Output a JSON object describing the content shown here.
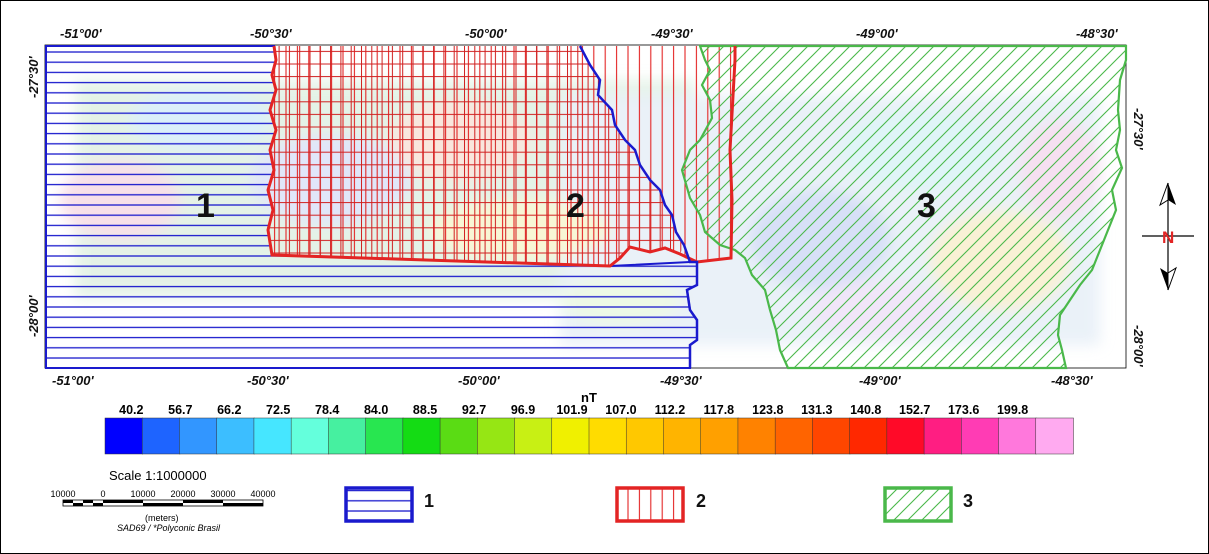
{
  "top_coords": [
    "-51°00'",
    "-50°30'",
    "-50°00'",
    "-49°30'",
    "-49°00'",
    "-48°30'"
  ],
  "bottom_coords": [
    "-51°00'",
    "-50°30'",
    "-50°00'",
    "-49°30'",
    "-49°00'",
    "-48°30'"
  ],
  "left_coords": [
    "-27°30'",
    "-28°00'"
  ],
  "right_coords": [
    "-27°30'",
    "-28°00'"
  ],
  "zones": [
    "1",
    "2",
    "3"
  ],
  "zone_colors": {
    "1": "#1a1acd",
    "2": "#e32424",
    "3": "#4ab84a"
  },
  "north_arrow": {
    "letter": "N",
    "icon": "north-arrow-icon"
  },
  "colorbar": {
    "unit": "nT",
    "labels": [
      "40.2",
      "56.7",
      "66.2",
      "72.5",
      "78.4",
      "84.0",
      "88.5",
      "92.7",
      "96.9",
      "101.9",
      "107.0",
      "112.2",
      "117.8",
      "123.8",
      "131.3",
      "140.8",
      "152.7",
      "173.6",
      "199.8"
    ],
    "colors": [
      "#0000ff",
      "#1e64ff",
      "#3296ff",
      "#3cbeff",
      "#46e6ff",
      "#64ffdc",
      "#46f0a0",
      "#28e650",
      "#14dc14",
      "#5adc14",
      "#96e614",
      "#c8f014",
      "#f0f000",
      "#ffdc00",
      "#ffc800",
      "#ffb400",
      "#ffa000",
      "#ff8200",
      "#ff6400",
      "#ff4600",
      "#ff2800",
      "#ff0a28",
      "#ff1e82",
      "#ff3cb4",
      "#ff78dc",
      "#ffaaf0"
    ]
  },
  "scale": {
    "title": "Scale 1:1000000",
    "ticks": [
      "10000",
      "0",
      "10000",
      "20000",
      "30000",
      "40000"
    ],
    "units": "(meters)",
    "projection": "SAD69 / *Polyconic Brasil"
  },
  "legend": [
    {
      "label": "1",
      "pattern": "horizontal-lines",
      "color": "#1a1acd"
    },
    {
      "label": "2",
      "pattern": "vertical-lines",
      "color": "#e32424"
    },
    {
      "label": "3",
      "pattern": "diagonal-lines",
      "color": "#4ab84a"
    }
  ]
}
